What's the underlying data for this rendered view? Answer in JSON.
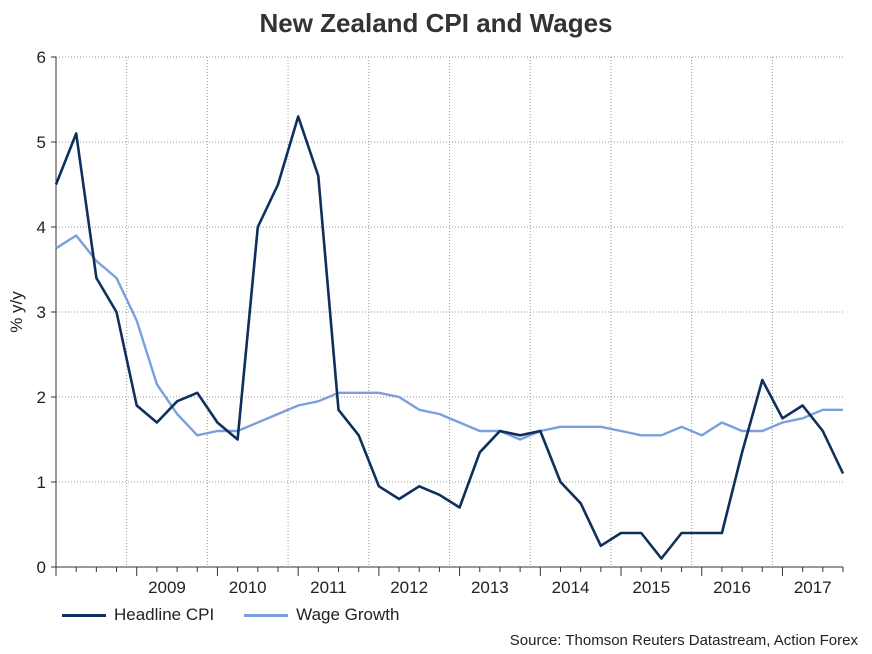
{
  "chart_data": {
    "type": "line",
    "title": "New Zealand CPI and Wages",
    "xlabel": "",
    "ylabel": "% y/y",
    "ylim": [
      0,
      6
    ],
    "yticks": [
      "0",
      "1",
      "2",
      "3",
      "4",
      "5",
      "6"
    ],
    "year_labels": [
      "2009",
      "2010",
      "2011",
      "2012",
      "2013",
      "2014",
      "2015",
      "2016",
      "2017"
    ],
    "x_range": [
      "2008-Q1",
      "2017-Q4"
    ],
    "grid": true,
    "legend_position": "bottom-left",
    "x": [
      "2008-Q1",
      "2008-Q2",
      "2008-Q3",
      "2008-Q4",
      "2009-Q1",
      "2009-Q2",
      "2009-Q3",
      "2009-Q4",
      "2010-Q1",
      "2010-Q2",
      "2010-Q3",
      "2010-Q4",
      "2011-Q1",
      "2011-Q2",
      "2011-Q3",
      "2011-Q4",
      "2012-Q1",
      "2012-Q2",
      "2012-Q3",
      "2012-Q4",
      "2013-Q1",
      "2013-Q2",
      "2013-Q3",
      "2013-Q4",
      "2014-Q1",
      "2014-Q2",
      "2014-Q3",
      "2014-Q4",
      "2015-Q1",
      "2015-Q2",
      "2015-Q3",
      "2015-Q4",
      "2016-Q1",
      "2016-Q2",
      "2016-Q3",
      "2016-Q4",
      "2017-Q1",
      "2017-Q2",
      "2017-Q3",
      "2017-Q4"
    ],
    "series": [
      {
        "name": "Headline CPI",
        "color": "#0f2f5c",
        "values": [
          4.5,
          5.1,
          3.4,
          3.0,
          1.9,
          1.7,
          1.95,
          2.05,
          1.7,
          1.5,
          4.0,
          4.5,
          5.3,
          4.6,
          1.85,
          1.55,
          0.95,
          0.8,
          0.95,
          0.85,
          0.7,
          1.35,
          1.6,
          1.55,
          1.6,
          1.0,
          0.75,
          0.25,
          0.4,
          0.4,
          0.1,
          0.4,
          0.4,
          0.4,
          1.35,
          2.2,
          1.75,
          1.9,
          1.6,
          1.1
        ]
      },
      {
        "name": "Wage Growth",
        "color": "#7b9fdb",
        "values": [
          3.75,
          3.9,
          3.6,
          3.4,
          2.9,
          2.15,
          1.8,
          1.55,
          1.6,
          1.6,
          1.7,
          1.8,
          1.9,
          1.95,
          2.05,
          2.05,
          2.05,
          2.0,
          1.85,
          1.8,
          1.7,
          1.6,
          1.6,
          1.5,
          1.6,
          1.65,
          1.65,
          1.65,
          1.6,
          1.55,
          1.55,
          1.65,
          1.55,
          1.7,
          1.6,
          1.6,
          1.7,
          1.75,
          1.85,
          1.85
        ]
      }
    ]
  },
  "source": "Source: Thomson Reuters Datastream, Action Forex"
}
